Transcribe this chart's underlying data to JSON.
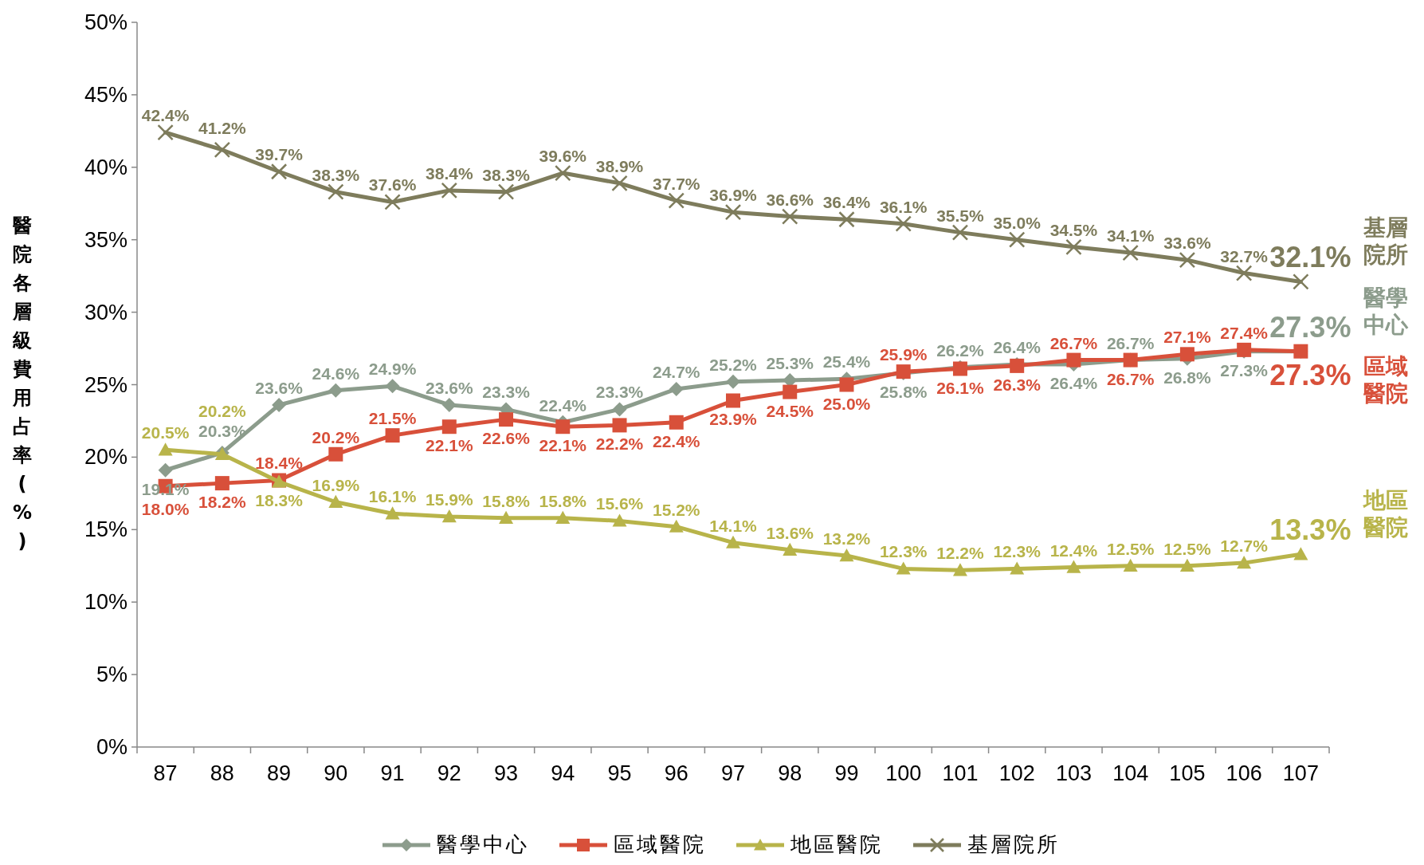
{
  "chart_data": {
    "type": "line",
    "ylabel": "醫院各層級費用占率(%)",
    "categories": [
      "87",
      "88",
      "89",
      "90",
      "91",
      "92",
      "93",
      "94",
      "95",
      "96",
      "97",
      "98",
      "99",
      "100",
      "101",
      "102",
      "103",
      "104",
      "105",
      "106",
      "107"
    ],
    "ylim": [
      0,
      50
    ],
    "yticks": [
      {
        "value": 0,
        "label": "0%"
      },
      {
        "value": 5,
        "label": "5%"
      },
      {
        "value": 10,
        "label": "10%"
      },
      {
        "value": 15,
        "label": "15%"
      },
      {
        "value": 20,
        "label": "20%"
      },
      {
        "value": 25,
        "label": "25%"
      },
      {
        "value": 30,
        "label": "30%"
      },
      {
        "value": 35,
        "label": "35%"
      },
      {
        "value": 40,
        "label": "40%"
      },
      {
        "value": 45,
        "label": "45%"
      },
      {
        "value": 50,
        "label": "50%"
      }
    ],
    "grid": false,
    "legend": "bottom",
    "line_style": "solid",
    "series": [
      {
        "name": "醫學中心",
        "color": "#8c9c8c",
        "marker": "diamond",
        "values": [
          19.1,
          20.3,
          23.6,
          24.6,
          24.9,
          23.6,
          23.3,
          22.4,
          23.3,
          24.7,
          25.2,
          25.3,
          25.4,
          25.8,
          26.2,
          26.4,
          26.4,
          26.7,
          26.8,
          27.3,
          27.3
        ],
        "value_labels": [
          "19.1%",
          "20.3%",
          "23.6%",
          "24.6%",
          "24.9%",
          "23.6%",
          "23.3%",
          "22.4%",
          "23.3%",
          "24.7%",
          "25.2%",
          "25.3%",
          "25.4%",
          "25.8%",
          "26.2%",
          "26.4%",
          "26.4%",
          "26.7%",
          "26.8%",
          "27.3%",
          "27.3%"
        ]
      },
      {
        "name": "區域醫院",
        "color": "#d8503a",
        "marker": "square",
        "values": [
          18.0,
          18.2,
          18.4,
          20.2,
          21.5,
          22.1,
          22.6,
          22.1,
          22.2,
          22.4,
          23.9,
          24.5,
          25.0,
          25.9,
          26.1,
          26.3,
          26.7,
          26.7,
          27.1,
          27.4,
          27.3
        ],
        "value_labels": [
          "18.0%",
          "18.2%",
          "18.4%",
          "20.2%",
          "21.5%",
          "22.1%",
          "22.6%",
          "22.1%",
          "22.2%",
          "22.4%",
          "23.9%",
          "24.5%",
          "25.0%",
          "25.9%",
          "26.1%",
          "26.3%",
          "26.7%",
          "26.7%",
          "27.1%",
          "27.4%",
          "27.3%"
        ]
      },
      {
        "name": "地區醫院",
        "color": "#b8b44a",
        "marker": "triangle",
        "values": [
          20.5,
          20.2,
          18.3,
          16.9,
          16.1,
          15.9,
          15.8,
          15.8,
          15.6,
          15.2,
          14.1,
          13.6,
          13.2,
          12.3,
          12.2,
          12.3,
          12.4,
          12.5,
          12.5,
          12.7,
          13.3
        ],
        "value_labels": [
          "20.5%",
          "20.2%",
          "18.3%",
          "16.9%",
          "16.1%",
          "15.9%",
          "15.8%",
          "15.8%",
          "15.6%",
          "15.2%",
          "14.1%",
          "13.6%",
          "13.2%",
          "12.3%",
          "12.2%",
          "12.3%",
          "12.4%",
          "12.5%",
          "12.5%",
          "12.7%",
          "13.3%"
        ]
      },
      {
        "name": "基層院所",
        "color": "#7e7c5c",
        "marker": "cross",
        "values": [
          42.4,
          41.2,
          39.7,
          38.3,
          37.6,
          38.4,
          38.3,
          39.6,
          38.9,
          37.7,
          36.9,
          36.6,
          36.4,
          36.1,
          35.5,
          35.0,
          34.5,
          34.1,
          33.6,
          32.7,
          32.1
        ],
        "value_labels": [
          "42.4%",
          "41.2%",
          "39.7%",
          "38.3%",
          "37.6%",
          "38.4%",
          "38.3%",
          "39.6%",
          "38.9%",
          "37.7%",
          "36.9%",
          "36.6%",
          "36.4%",
          "36.1%",
          "35.5%",
          "35.0%",
          "34.5%",
          "34.1%",
          "33.6%",
          "32.7%",
          "32.1%"
        ]
      }
    ]
  }
}
